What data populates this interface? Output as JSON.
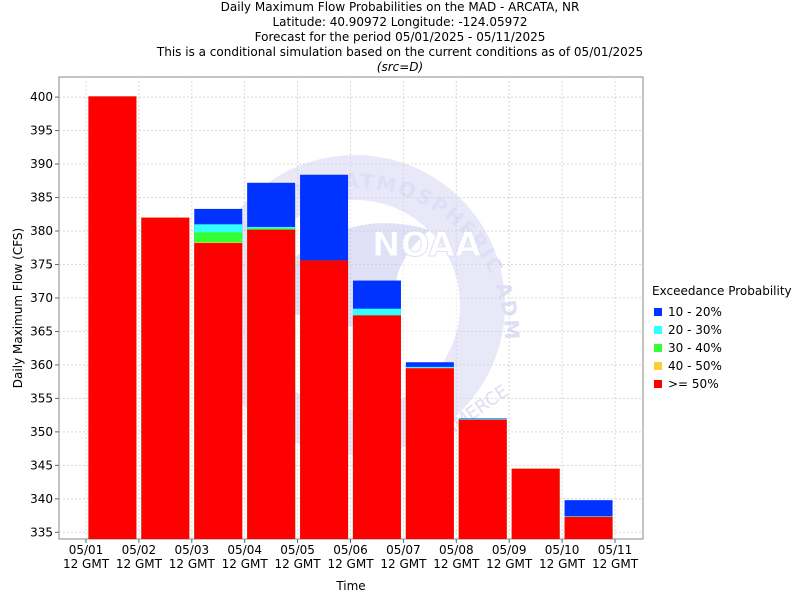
{
  "titles": {
    "line1": "Daily Maximum Flow Probabilities on the MAD - ARCATA, NR",
    "line2": "Latitude: 40.90972 Longitude: -124.05972",
    "line3": "Forecast for the period 05/01/2025 - 05/11/2025",
    "line4": "This is a conditional simulation based on the current conditions as of 05/01/2025",
    "line5": "(src=D)"
  },
  "watermark": {
    "ring_text": "OCEANIC AND ATMOSPHERIC ADMINISTRATION",
    "center_text": "NOAA",
    "lower_text": "COMMERCE"
  },
  "chart_data": {
    "type": "bar",
    "stacked": true,
    "xlabel": "Time",
    "ylabel": "Daily Maximum Flow (CFS)",
    "ylim": [
      334,
      403
    ],
    "yticks": [
      335,
      340,
      345,
      350,
      355,
      360,
      365,
      370,
      375,
      380,
      385,
      390,
      395,
      400
    ],
    "xticks": [
      {
        "d": "05/01",
        "t": "12 GMT"
      },
      {
        "d": "05/02",
        "t": "12 GMT"
      },
      {
        "d": "05/03",
        "t": "12 GMT"
      },
      {
        "d": "05/04",
        "t": "12 GMT"
      },
      {
        "d": "05/05",
        "t": "12 GMT"
      },
      {
        "d": "05/06",
        "t": "12 GMT"
      },
      {
        "d": "05/07",
        "t": "12 GMT"
      },
      {
        "d": "05/08",
        "t": "12 GMT"
      },
      {
        "d": "05/09",
        "t": "12 GMT"
      },
      {
        "d": "05/10",
        "t": "12 GMT"
      },
      {
        "d": "05/11",
        "t": "12 GMT"
      }
    ],
    "grid": true,
    "legend_title": "Exceedance Probability",
    "legend_position": "right",
    "series": [
      {
        "name": "10 - 20%",
        "color": "#0033ff"
      },
      {
        "name": "20 - 30%",
        "color": "#33ffff"
      },
      {
        "name": "30 - 40%",
        "color": "#33ff33"
      },
      {
        "name": "40 - 50%",
        "color": "#ffcc33"
      },
      {
        "name": ">= 50%",
        "color": "#ff0000"
      }
    ],
    "bars": [
      {
        "date": "05/01",
        "levels": {
          ">= 50%": 400.1,
          "40 - 50%": 400.1,
          "30 - 40%": 400.1,
          "20 - 30%": 400.1,
          "10 - 20%": 400.1
        }
      },
      {
        "date": "05/02",
        "levels": {
          ">= 50%": 382.0,
          "40 - 50%": 382.0,
          "30 - 40%": 382.0,
          "20 - 30%": 382.0,
          "10 - 20%": 382.0
        }
      },
      {
        "date": "05/03",
        "levels": {
          ">= 50%": 378.2,
          "40 - 50%": 378.3,
          "30 - 40%": 379.8,
          "20 - 30%": 381.0,
          "10 - 20%": 383.3
        }
      },
      {
        "date": "05/04",
        "levels": {
          ">= 50%": 380.2,
          "40 - 50%": 380.2,
          "30 - 40%": 380.4,
          "20 - 30%": 380.6,
          "10 - 20%": 387.2
        }
      },
      {
        "date": "05/05",
        "levels": {
          ">= 50%": 375.6,
          "40 - 50%": 375.6,
          "30 - 40%": 375.6,
          "20 - 30%": 375.6,
          "10 - 20%": 388.4
        }
      },
      {
        "date": "05/06",
        "levels": {
          ">= 50%": 367.4,
          "40 - 50%": 367.4,
          "30 - 40%": 367.4,
          "20 - 30%": 368.4,
          "10 - 20%": 372.6
        }
      },
      {
        "date": "05/07",
        "levels": {
          ">= 50%": 359.5,
          "40 - 50%": 359.5,
          "30 - 40%": 359.5,
          "20 - 30%": 359.7,
          "10 - 20%": 360.4
        }
      },
      {
        "date": "05/08",
        "levels": {
          ">= 50%": 351.8,
          "40 - 50%": 351.8,
          "30 - 40%": 351.8,
          "20 - 30%": 351.9,
          "10 - 20%": 352.0
        }
      },
      {
        "date": "05/09",
        "levels": {
          ">= 50%": 344.5,
          "40 - 50%": 344.5,
          "30 - 40%": 344.5,
          "20 - 30%": 344.5,
          "10 - 20%": 344.5
        }
      },
      {
        "date": "05/10",
        "levels": {
          ">= 50%": 337.3,
          "40 - 50%": 337.3,
          "30 - 40%": 337.3,
          "20 - 30%": 337.4,
          "10 - 20%": 339.8
        }
      }
    ]
  }
}
